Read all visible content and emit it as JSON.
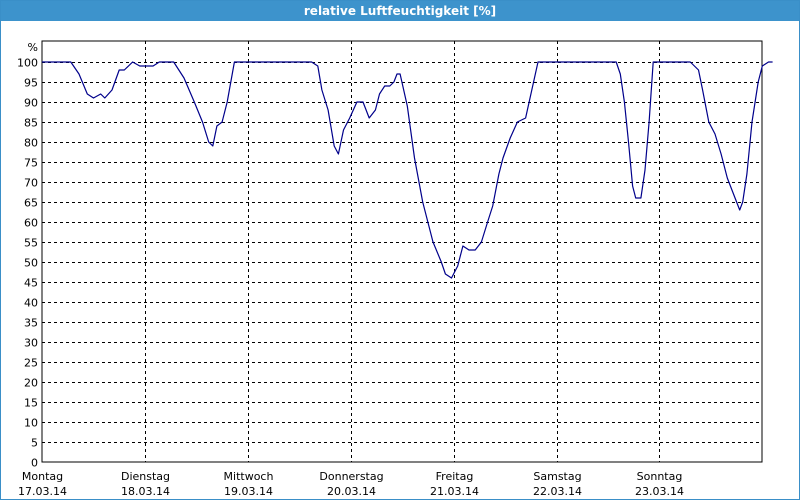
{
  "window": {
    "title": "relative Luftfeuchtigkeit [%]"
  },
  "chart_data": {
    "type": "line",
    "title": "relative Luftfeuchtigkeit [%]",
    "ylabel": "%",
    "ylim": [
      0,
      100
    ],
    "grid": true,
    "yticks": [
      0,
      5,
      10,
      15,
      20,
      25,
      30,
      35,
      40,
      45,
      50,
      55,
      60,
      65,
      70,
      75,
      80,
      85,
      90,
      95,
      100
    ],
    "xlim": [
      0,
      7
    ],
    "days": [
      {
        "day": "Montag",
        "date": "17.03.14"
      },
      {
        "day": "Dienstag",
        "date": "18.03.14"
      },
      {
        "day": "Mittwoch",
        "date": "19.03.14"
      },
      {
        "day": "Donnerstag",
        "date": "20.03.14"
      },
      {
        "day": "Freitag",
        "date": "21.03.14"
      },
      {
        "day": "Samstag",
        "date": "22.03.14"
      },
      {
        "day": "Sonntag",
        "date": "23.03.14"
      }
    ],
    "series": [
      {
        "color": "#00008b",
        "points": [
          [
            0.0,
            100
          ],
          [
            0.28,
            100
          ],
          [
            0.36,
            97
          ],
          [
            0.44,
            92
          ],
          [
            0.5,
            91
          ],
          [
            0.57,
            92
          ],
          [
            0.61,
            91
          ],
          [
            0.68,
            93
          ],
          [
            0.75,
            98
          ],
          [
            0.8,
            98
          ],
          [
            0.88,
            100
          ],
          [
            0.95,
            99
          ],
          [
            1.02,
            99
          ],
          [
            1.08,
            99
          ],
          [
            1.14,
            100
          ],
          [
            1.28,
            100
          ],
          [
            1.38,
            96
          ],
          [
            1.48,
            90
          ],
          [
            1.56,
            85
          ],
          [
            1.62,
            80
          ],
          [
            1.66,
            79
          ],
          [
            1.7,
            84
          ],
          [
            1.75,
            85
          ],
          [
            1.8,
            90
          ],
          [
            1.87,
            100
          ],
          [
            2.0,
            100
          ],
          [
            2.3,
            100
          ],
          [
            2.5,
            100
          ],
          [
            2.62,
            100
          ],
          [
            2.68,
            99
          ],
          [
            2.72,
            93
          ],
          [
            2.78,
            88
          ],
          [
            2.84,
            79
          ],
          [
            2.88,
            77
          ],
          [
            2.93,
            83
          ],
          [
            2.99,
            86
          ],
          [
            3.06,
            90
          ],
          [
            3.12,
            90
          ],
          [
            3.18,
            86
          ],
          [
            3.24,
            88
          ],
          [
            3.28,
            92
          ],
          [
            3.33,
            94
          ],
          [
            3.38,
            94
          ],
          [
            3.42,
            95
          ],
          [
            3.45,
            97
          ],
          [
            3.48,
            97
          ],
          [
            3.55,
            89
          ],
          [
            3.62,
            76
          ],
          [
            3.7,
            65
          ],
          [
            3.8,
            55
          ],
          [
            3.88,
            50
          ],
          [
            3.92,
            47
          ],
          [
            3.98,
            46
          ],
          [
            4.04,
            49
          ],
          [
            4.09,
            54
          ],
          [
            4.15,
            53
          ],
          [
            4.21,
            53
          ],
          [
            4.27,
            55
          ],
          [
            4.33,
            60
          ],
          [
            4.38,
            64
          ],
          [
            4.44,
            72
          ],
          [
            4.48,
            76
          ],
          [
            4.55,
            81
          ],
          [
            4.62,
            85
          ],
          [
            4.7,
            86
          ],
          [
            4.76,
            93
          ],
          [
            4.82,
            100
          ],
          [
            5.0,
            100
          ],
          [
            5.2,
            100
          ],
          [
            5.38,
            100
          ],
          [
            5.5,
            100
          ],
          [
            5.58,
            100
          ],
          [
            5.62,
            97
          ],
          [
            5.66,
            90
          ],
          [
            5.7,
            80
          ],
          [
            5.74,
            69
          ],
          [
            5.77,
            66
          ],
          [
            5.82,
            66
          ],
          [
            5.86,
            73
          ],
          [
            5.9,
            85
          ],
          [
            5.94,
            100
          ],
          [
            6.0,
            100
          ],
          [
            6.2,
            100
          ],
          [
            6.3,
            100
          ],
          [
            6.38,
            98
          ],
          [
            6.42,
            93
          ],
          [
            6.48,
            85
          ],
          [
            6.54,
            82
          ],
          [
            6.6,
            77
          ],
          [
            6.66,
            71
          ],
          [
            6.72,
            67
          ],
          [
            6.78,
            63
          ],
          [
            6.81,
            65
          ],
          [
            6.85,
            72
          ],
          [
            6.9,
            85
          ],
          [
            6.96,
            95
          ],
          [
            7.0,
            99
          ],
          [
            7.06,
            100
          ],
          [
            7.1,
            100
          ]
        ]
      }
    ]
  }
}
